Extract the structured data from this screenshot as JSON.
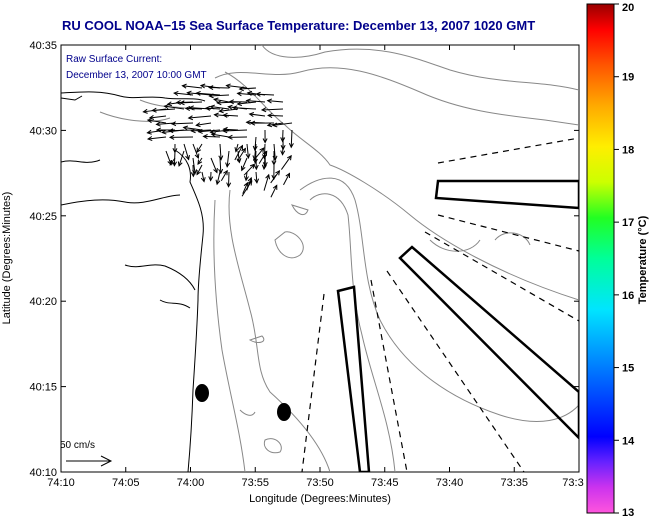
{
  "title": "RU COOL  NOAA−15  Sea Surface Temperature:  December 13, 2007 1020 GMT",
  "current_note": {
    "line1": "Raw Surface Current:",
    "line2": "December 13, 2007 10:00 GMT"
  },
  "scale_label": "50 cm/s",
  "axes": {
    "xlabel": "Longitude (Degrees:Minutes)",
    "ylabel": "Latitude (Degrees:Minutes)",
    "x_ticks": [
      "74:10",
      "74:05",
      "74:00",
      "73:55",
      "73:50",
      "73:45",
      "73:40",
      "73:35",
      "73:3"
    ],
    "y_ticks": [
      "40:35",
      "40:30",
      "40:25",
      "40:20",
      "40:15",
      "40:10"
    ]
  },
  "colorbar": {
    "label": "Temperature (°C)",
    "ticks": [
      "20",
      "19",
      "18",
      "17",
      "16",
      "15",
      "14",
      "13"
    ]
  }
}
